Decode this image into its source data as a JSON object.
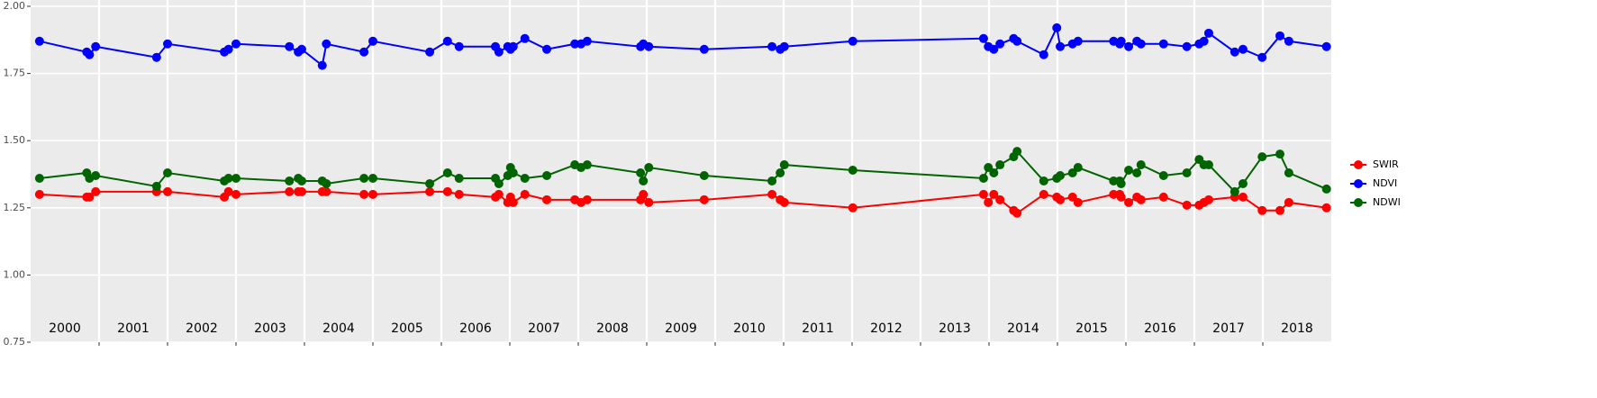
{
  "chart_data": {
    "type": "line",
    "x": [
      2000.13,
      2000.82,
      2000.86,
      2000.95,
      2001.84,
      2002.0,
      2002.83,
      2002.89,
      2003.0,
      2003.78,
      2003.91,
      2003.96,
      2004.26,
      2004.32,
      2004.87,
      2005.0,
      2005.83,
      2006.09,
      2006.26,
      2006.79,
      2006.84,
      2006.97,
      2007.01,
      2007.05,
      2007.22,
      2007.54,
      2007.95,
      2008.04,
      2008.13,
      2008.91,
      2008.95,
      2009.03,
      2009.84,
      2010.83,
      2010.95,
      2011.01,
      2012.01,
      2013.92,
      2013.99,
      2014.07,
      2014.16,
      2014.36,
      2014.41,
      2014.8,
      2014.99,
      2015.04,
      2015.22,
      2015.3,
      2015.82,
      2015.91,
      2015.93,
      2016.04,
      2016.16,
      2016.22,
      2016.55,
      2016.89,
      2017.07,
      2017.14,
      2017.21,
      2017.59,
      2017.71,
      2017.99,
      2018.25,
      2018.38,
      2018.93
    ],
    "series": [
      {
        "name": "SWIR",
        "color": "#ff0000",
        "values": [
          1.3,
          1.29,
          1.29,
          1.31,
          1.31,
          1.31,
          1.29,
          1.31,
          1.3,
          1.31,
          1.31,
          1.31,
          1.31,
          1.31,
          1.3,
          1.3,
          1.31,
          1.31,
          1.3,
          1.29,
          1.3,
          1.27,
          1.29,
          1.27,
          1.3,
          1.28,
          1.28,
          1.27,
          1.28,
          1.28,
          1.3,
          1.27,
          1.28,
          1.3,
          1.28,
          1.27,
          1.25,
          1.3,
          1.27,
          1.3,
          1.28,
          1.24,
          1.23,
          1.3,
          1.29,
          1.28,
          1.29,
          1.27,
          1.3,
          1.3,
          1.29,
          1.27,
          1.29,
          1.28,
          1.29,
          1.26,
          1.26,
          1.27,
          1.28,
          1.29,
          1.29,
          1.24,
          1.24,
          1.27,
          1.25
        ]
      },
      {
        "name": "NDVI",
        "color": "#0000ff",
        "values": [
          1.87,
          1.83,
          1.82,
          1.85,
          1.81,
          1.86,
          1.83,
          1.84,
          1.86,
          1.85,
          1.83,
          1.84,
          1.78,
          1.86,
          1.83,
          1.87,
          1.83,
          1.87,
          1.85,
          1.85,
          1.83,
          1.85,
          1.84,
          1.85,
          1.88,
          1.84,
          1.86,
          1.86,
          1.87,
          1.85,
          1.86,
          1.85,
          1.84,
          1.85,
          1.84,
          1.85,
          1.87,
          1.88,
          1.85,
          1.84,
          1.86,
          1.88,
          1.87,
          1.82,
          1.92,
          1.85,
          1.86,
          1.87,
          1.87,
          1.86,
          1.87,
          1.85,
          1.87,
          1.86,
          1.86,
          1.85,
          1.86,
          1.87,
          1.9,
          1.83,
          1.84,
          1.81,
          1.89,
          1.87,
          1.85
        ]
      },
      {
        "name": "NDWI",
        "color": "#006400",
        "values": [
          1.36,
          1.38,
          1.36,
          1.37,
          1.33,
          1.38,
          1.35,
          1.36,
          1.36,
          1.35,
          1.36,
          1.35,
          1.35,
          1.34,
          1.36,
          1.36,
          1.34,
          1.38,
          1.36,
          1.36,
          1.34,
          1.37,
          1.4,
          1.38,
          1.36,
          1.37,
          1.41,
          1.4,
          1.41,
          1.38,
          1.35,
          1.4,
          1.37,
          1.35,
          1.38,
          1.41,
          1.39,
          1.36,
          1.4,
          1.38,
          1.41,
          1.44,
          1.46,
          1.35,
          1.36,
          1.37,
          1.38,
          1.4,
          1.35,
          1.35,
          1.34,
          1.39,
          1.38,
          1.41,
          1.37,
          1.38,
          1.43,
          1.41,
          1.41,
          1.31,
          1.34,
          1.44,
          1.45,
          1.38,
          1.32
        ]
      }
    ],
    "xlim": [
      2000,
      2019
    ],
    "xticks": [
      2001,
      2002,
      2003,
      2004,
      2005,
      2006,
      2007,
      2008,
      2009,
      2010,
      2011,
      2012,
      2013,
      2014,
      2015,
      2016,
      2017,
      2018
    ],
    "ylim": [
      0.75,
      2.0
    ],
    "yticks": [
      0.75,
      {
        "value": 1.0,
        "label": "1.00"
      },
      1.25,
      {
        "value": 1.5,
        "label": "1.50"
      },
      1.75,
      {
        "value": 2.0,
        "label": "2.00"
      }
    ],
    "grid": true,
    "legend": "right",
    "annotations": [
      {
        "text": "2000",
        "x": 2000.5,
        "y": 0.8
      },
      {
        "text": "2001",
        "x": 2001.5,
        "y": 0.8
      },
      {
        "text": "2002",
        "x": 2002.5,
        "y": 0.8
      },
      {
        "text": "2003",
        "x": 2003.5,
        "y": 0.8
      },
      {
        "text": "2004",
        "x": 2004.5,
        "y": 0.8
      },
      {
        "text": "2005",
        "x": 2005.5,
        "y": 0.8
      },
      {
        "text": "2006",
        "x": 2006.5,
        "y": 0.8
      },
      {
        "text": "2007",
        "x": 2007.5,
        "y": 0.8
      },
      {
        "text": "2008",
        "x": 2008.5,
        "y": 0.8
      },
      {
        "text": "2009",
        "x": 2009.5,
        "y": 0.8
      },
      {
        "text": "2010",
        "x": 2010.5,
        "y": 0.8
      },
      {
        "text": "2011",
        "x": 2011.5,
        "y": 0.8
      },
      {
        "text": "2012",
        "x": 2012.5,
        "y": 0.8
      },
      {
        "text": "2013",
        "x": 2013.5,
        "y": 0.8
      },
      {
        "text": "2014",
        "x": 2014.5,
        "y": 0.8
      },
      {
        "text": "2015",
        "x": 2015.5,
        "y": 0.8
      },
      {
        "text": "2016",
        "x": 2016.5,
        "y": 0.8
      },
      {
        "text": "2017",
        "x": 2017.5,
        "y": 0.8
      },
      {
        "text": "2018",
        "x": 2018.5,
        "y": 0.8
      }
    ]
  }
}
